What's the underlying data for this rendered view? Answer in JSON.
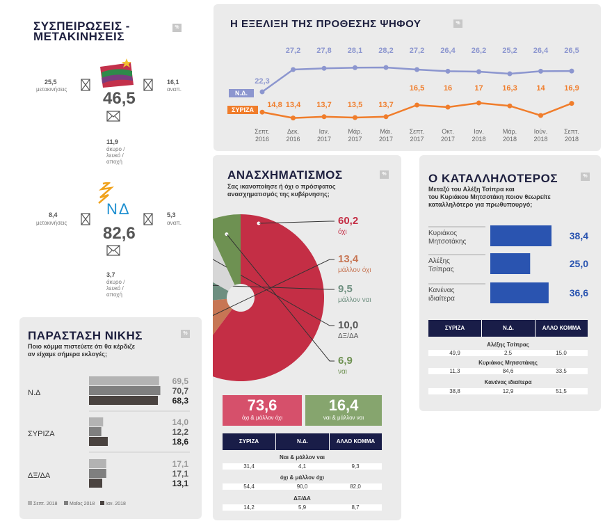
{
  "sysp": {
    "title_line1": "ΣΥΣΠΕΙΡΩΣΕΙΣ -",
    "title_line2": "ΜΕΤΑΚΙΝΗΣΕΙΣ",
    "badge": "%",
    "syriza": {
      "left_val": "25,5",
      "left_label": "μετακινήσεις",
      "center": "46,5",
      "right_val": "16,1",
      "right_label": "αναπ.",
      "bottom_val": "11,9",
      "bottom_label1": "άκυρο /",
      "bottom_label2": "λευκό /",
      "bottom_label3": "αποχή"
    },
    "nd": {
      "logo_text": "ΝΔ",
      "left_val": "8,4",
      "left_label": "μετακινήσεις",
      "center": "82,6",
      "right_val": "5,3",
      "right_label": "αναπ.",
      "bottom_val": "3,7",
      "bottom_label1": "άκυρο /",
      "bottom_label2": "λευκό /",
      "bottom_label3": "αποχή"
    }
  },
  "colors": {
    "nd": "#8c96cf",
    "syriza": "#f07d2b",
    "pie_oxi": "#c42e45",
    "pie_mallon_oxi": "#c77654",
    "pie_mallon_nai": "#6e8f80",
    "pie_dxda": "#d7d7d7",
    "pie_nai": "#6e9152",
    "navy": "#191d48",
    "bar_blue": "#2a54b0"
  },
  "chart_data": [
    {
      "type": "line",
      "title": "Η ΕΞΕΛΙΞΗ ΤΗΣ ΠΡΟΘΕΣΗΣ ΨΗΦΟΥ",
      "badge": "%",
      "categories": [
        [
          "Σεπτ.",
          "2016"
        ],
        [
          "Δεκ.",
          "2016"
        ],
        [
          "Ιαν.",
          "2017"
        ],
        [
          "Μάρ.",
          "2017"
        ],
        [
          "Μάι.",
          "2017"
        ],
        [
          "Σεπτ.",
          "2017"
        ],
        [
          "Οκτ.",
          "2017"
        ],
        [
          "Ιαν.",
          "2018"
        ],
        [
          "Μάρ.",
          "2018"
        ],
        [
          "Ιούν.",
          "2018"
        ],
        [
          "Σεπτ.",
          "2018"
        ]
      ],
      "series": [
        {
          "name": "Ν.Δ.",
          "values": [
            22.3,
            27.2,
            27.8,
            28.1,
            28.2,
            27.2,
            26.4,
            26.2,
            25.2,
            26.4,
            26.5
          ],
          "labels": [
            "22,3",
            "27,2",
            "27,8",
            "28,1",
            "28,2",
            "27,2",
            "26,4",
            "26,2",
            "25,2",
            "26,4",
            "26,5"
          ]
        },
        {
          "name": "ΣΥΡΙΖΑ",
          "values": [
            14.8,
            13.4,
            13.7,
            13.5,
            13.7,
            16.5,
            16,
            17,
            16.3,
            14,
            16.9
          ],
          "labels": [
            "14,8",
            "13,4",
            "13,7",
            "13,5",
            "13,7",
            "16,5",
            "16",
            "17",
            "16,3",
            "14",
            "16,9"
          ]
        }
      ],
      "ylim": [
        12,
        30
      ]
    },
    {
      "type": "pie",
      "title": "ΑΝΑΣΧΗΜΑΤΙΣΜΟΣ",
      "badge": "%",
      "subtitle1": "Σας ικανοποίησε ή όχι ο πρόσφατος",
      "subtitle2": "ανασχηματισμός της κυβέρνησης;",
      "slices": [
        {
          "label": "όχι",
          "value": 60.2,
          "value_text": "60,2"
        },
        {
          "label": "μάλλον όχι",
          "value": 13.4,
          "value_text": "13,4"
        },
        {
          "label": "μάλλον ναι",
          "value": 9.5,
          "value_text": "9,5"
        },
        {
          "label": "ΔΞ/ΔΑ",
          "value": 10.0,
          "value_text": "10,0"
        },
        {
          "label": "ναι",
          "value": 6.9,
          "value_text": "6,9"
        }
      ]
    },
    {
      "type": "bar",
      "title": "Ο ΚΑΤΑΛΛΗΛΟΤΕΡΟΣ",
      "badge": "%",
      "subtitle1": "Μεταξύ του Αλέξη Τσίπρα και",
      "subtitle2": "του Κυριάκου Μητσοτάκη ποιον θεωρείτε",
      "subtitle3": "καταλληλότερο για πρωθυπουργό;",
      "bars": [
        {
          "label1": "Κυριάκος",
          "label2": "Μητσοτάκης",
          "value": 38.4,
          "value_text": "38,4"
        },
        {
          "label1": "Αλέξης",
          "label2": "Τσίπρας",
          "value": 25.0,
          "value_text": "25,0"
        },
        {
          "label1": "Κανένας",
          "label2": "ιδιαίτερα",
          "value": 36.6,
          "value_text": "36,6"
        }
      ],
      "xlim": [
        0,
        40
      ]
    },
    {
      "type": "bar",
      "title": "ΠΑΡΑΣΤΑΣΗ ΝΙΚΗΣ",
      "badge": "%",
      "subtitle1": "Ποιο κόμμα πιστεύετε ότι θα κέρδιζε",
      "subtitle2": "αν είχαμε σήμερα εκλογές;",
      "legend": [
        "Σεπτ. 2018",
        "Μαΐος 2018",
        "Ιαν. 2018"
      ],
      "groups": [
        {
          "name": "Ν.Δ",
          "values": [
            69.5,
            70.7,
            68.3
          ],
          "texts": [
            "69,5",
            "70,7",
            "68,3"
          ]
        },
        {
          "name": "ΣΥΡΙΖΑ",
          "values": [
            14.0,
            12.2,
            18.6
          ],
          "texts": [
            "14,0",
            "12,2",
            "18,6"
          ]
        },
        {
          "name": "ΔΞ/ΔΑ",
          "values": [
            17.1,
            17.1,
            13.1
          ],
          "texts": [
            "17,1",
            "17,1",
            "13,1"
          ]
        }
      ],
      "xlim": [
        0,
        100
      ]
    }
  ],
  "boxes": {
    "left_val": "73,6",
    "left_label": "όχι & μάλλον όχι",
    "right_val": "16,4",
    "right_label": "ναι & μάλλον ναι",
    "left_color": "#d6506b",
    "right_color": "#86a56e"
  },
  "table_mid": {
    "headers": [
      "ΣΥΡΙΖΑ",
      "Ν.Δ.",
      "ΑΛΛΟ ΚΟΜΜΑ"
    ],
    "groups": [
      {
        "caption": "Ναι & μάλλον ναι",
        "values": [
          "31,4",
          "4,1",
          "9,3"
        ]
      },
      {
        "caption": "όχι & μάλλον όχι",
        "values": [
          "54,4",
          "90,0",
          "82,0"
        ]
      },
      {
        "caption": "ΔΞ/ΔΑ",
        "values": [
          "14,2",
          "5,9",
          "8,7"
        ]
      }
    ]
  },
  "table_right": {
    "headers": [
      "ΣΥΡΙΖΑ",
      "Ν.Δ.",
      "ΑΛΛΟ ΚΟΜΜΑ"
    ],
    "groups": [
      {
        "caption": "Αλέξης Τσίπρας",
        "values": [
          "49,9",
          "2,5",
          "15,0"
        ]
      },
      {
        "caption": "Κυριάκος Μητσοτάκης",
        "values": [
          "11,3",
          "84,6",
          "33,5"
        ]
      },
      {
        "caption": "Κανένας ιδιαίτερα",
        "values": [
          "38,8",
          "12,9",
          "51,5"
        ]
      }
    ]
  }
}
